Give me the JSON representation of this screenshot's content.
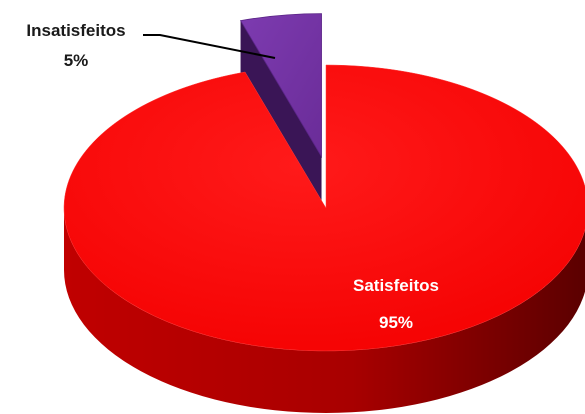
{
  "chart_data": {
    "type": "pie",
    "title": "",
    "slices": [
      {
        "label": "Satisfeitos",
        "value": 95,
        "value_label": "95%",
        "color": "#ff0000",
        "side_color": "#b40000"
      },
      {
        "label": "Insatisfeitos",
        "value": 5,
        "value_label": "5%",
        "color": "#7030a0",
        "side_color": "#3a1556"
      }
    ],
    "three_d": true,
    "exploded_slice": "Insatisfeitos",
    "legend": "none"
  }
}
